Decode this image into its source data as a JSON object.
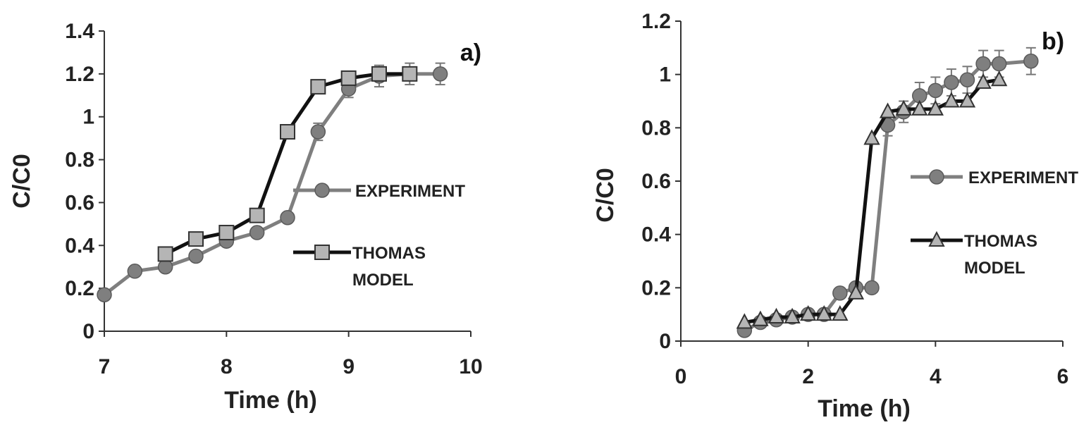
{
  "chart_data": [
    {
      "type": "line",
      "panel_label": "a)",
      "xlabel": "Time (h)",
      "ylabel": "C/C0",
      "xlim": [
        7,
        10
      ],
      "ylim": [
        0,
        1.4
      ],
      "xticks": [
        7,
        8,
        9,
        10
      ],
      "yticks": [
        0,
        0.2,
        0.4,
        0.6,
        0.8,
        1,
        1.2,
        1.4
      ],
      "xtick_labels": [
        "7",
        "8",
        "9",
        "10"
      ],
      "ytick_labels": [
        "0",
        "0.2",
        "0.4",
        "0.6",
        "0.8",
        "1",
        "1.2",
        "1.4"
      ],
      "legend_position": "right",
      "series": [
        {
          "name": "EXPERIMENT",
          "legend_lines": [
            "EXPERIMENT"
          ],
          "marker": "circle",
          "color": "#7f7f7f",
          "marker_color": "#7f7f7f",
          "x": [
            7,
            7.25,
            7.5,
            7.75,
            8,
            8.25,
            8.5,
            8.75,
            9,
            9.25,
            9.5,
            9.75
          ],
          "y": [
            0.17,
            0.28,
            0.3,
            0.35,
            0.42,
            0.46,
            0.53,
            0.93,
            1.13,
            1.19,
            1.2,
            1.2
          ],
          "error": [
            0,
            0,
            0,
            0,
            0,
            0,
            0,
            0.04,
            0.04,
            0.05,
            0.05,
            0.05
          ]
        },
        {
          "name": "THOMAS MODEL",
          "legend_lines": [
            "THOMAS",
            "MODEL"
          ],
          "marker": "square",
          "color": "#111111",
          "marker_color": "#b5b5b5",
          "x": [
            7.5,
            7.75,
            8,
            8.25,
            8.5,
            8.75,
            9,
            9.25,
            9.5
          ],
          "y": [
            0.36,
            0.43,
            0.46,
            0.54,
            0.93,
            1.14,
            1.18,
            1.2,
            1.2
          ],
          "error": []
        }
      ]
    },
    {
      "type": "line",
      "panel_label": "b)",
      "xlabel": "Time (h)",
      "ylabel": "C/C0",
      "xlim": [
        0,
        6
      ],
      "ylim": [
        0,
        1.2
      ],
      "xticks": [
        0,
        2,
        4,
        6
      ],
      "yticks": [
        0,
        0.2,
        0.4,
        0.6,
        0.8,
        1,
        1.2
      ],
      "xtick_labels": [
        "0",
        "2",
        "4",
        "6"
      ],
      "ytick_labels": [
        "0",
        "0.2",
        "0.4",
        "0.6",
        "0.8",
        "1",
        "1.2"
      ],
      "legend_position": "right",
      "series": [
        {
          "name": "EXPERIMENT",
          "legend_lines": [
            "EXPERIMENT"
          ],
          "marker": "circle",
          "color": "#7f7f7f",
          "marker_color": "#7f7f7f",
          "x": [
            1,
            1.25,
            1.5,
            1.75,
            2,
            2.25,
            2.5,
            2.75,
            3,
            3.25,
            3.5,
            3.75,
            4,
            4.25,
            4.5,
            4.75,
            5,
            5.5
          ],
          "y": [
            0.04,
            0.07,
            0.08,
            0.09,
            0.1,
            0.1,
            0.18,
            0.2,
            0.2,
            0.81,
            0.86,
            0.92,
            0.94,
            0.97,
            0.98,
            1.04,
            1.04,
            1.05
          ],
          "error": [
            0,
            0,
            0,
            0,
            0,
            0,
            0,
            0,
            0,
            0.04,
            0.04,
            0.05,
            0.05,
            0.05,
            0.05,
            0.05,
            0.05,
            0.05
          ]
        },
        {
          "name": "THOMAS MODEL",
          "legend_lines": [
            "THOMAS",
            "MODEL"
          ],
          "marker": "triangle",
          "color": "#111111",
          "marker_color": "#b5b5b5",
          "x": [
            1,
            1.25,
            1.5,
            1.75,
            2,
            2.25,
            2.5,
            2.75,
            3,
            3.25,
            3.5,
            3.75,
            4,
            4.25,
            4.5,
            4.75,
            5
          ],
          "y": [
            0.07,
            0.08,
            0.09,
            0.09,
            0.1,
            0.1,
            0.1,
            0.18,
            0.76,
            0.86,
            0.87,
            0.87,
            0.87,
            0.9,
            0.9,
            0.97,
            0.98
          ],
          "error": []
        }
      ]
    }
  ]
}
